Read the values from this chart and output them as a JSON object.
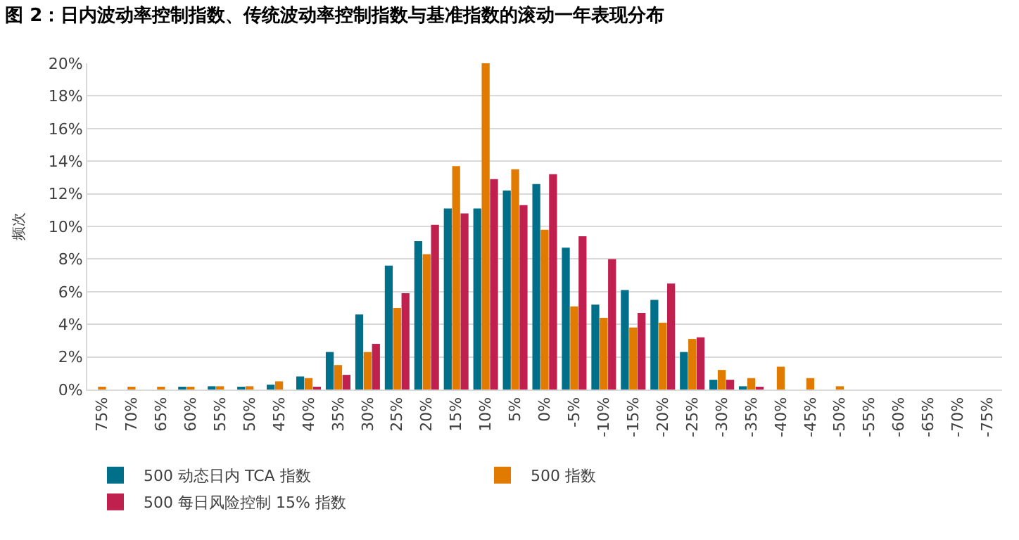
{
  "chart_data": {
    "type": "bar",
    "title": "图 2：日内波动率控制指数、传统波动率控制指数与基准指数的滚动一年表现分布",
    "ylabel": "频次",
    "categories": [
      "75%",
      "70%",
      "65%",
      "60%",
      "55%",
      "50%",
      "45%",
      "40%",
      "35%",
      "30%",
      "25%",
      "20%",
      "15%",
      "10%",
      "5%",
      "0%",
      "-5%",
      "-10%",
      "-15%",
      "-20%",
      "-25%",
      "-30%",
      "-35%",
      "-40%",
      "-45%",
      "-50%",
      "-55%",
      "-60%",
      "-65%",
      "-70%",
      "-75%"
    ],
    "series": [
      {
        "name": "500 动态日内 TCA 指数",
        "color": "#00708a",
        "values": [
          0,
          0,
          0,
          0.1,
          0.2,
          0.1,
          0.3,
          0.8,
          2.3,
          4.6,
          7.6,
          9.1,
          11.1,
          11.1,
          12.2,
          12.6,
          8.7,
          5.2,
          6.1,
          5.5,
          2.3,
          0.6,
          0.2,
          0,
          0,
          0,
          0,
          0,
          0,
          0,
          0
        ]
      },
      {
        "name": "500 指数",
        "color": "#e07b00",
        "values": [
          0.1,
          0.1,
          0.1,
          0.1,
          0.2,
          0.2,
          0.5,
          0.7,
          1.5,
          2.3,
          5.0,
          8.3,
          13.7,
          20,
          13.5,
          9.8,
          5.1,
          4.4,
          3.8,
          4.1,
          3.1,
          1.2,
          0.7,
          1.4,
          0.7,
          0.2,
          0,
          0,
          0,
          0,
          0
        ]
      },
      {
        "name": "500 每日风险控制 15% 指数",
        "color": "#c0204e",
        "values": [
          0,
          0,
          0,
          0,
          0,
          0,
          0,
          0.1,
          0.9,
          2.8,
          5.9,
          10.1,
          10.8,
          12.9,
          11.3,
          13.2,
          9.4,
          8.0,
          4.7,
          6.5,
          3.2,
          0.6,
          0.1,
          0,
          0,
          0,
          0,
          0,
          0,
          0,
          0
        ]
      }
    ],
    "ylim": [
      0,
      20
    ],
    "yticks": [
      {
        "value": 0,
        "label": "0%"
      },
      {
        "value": 2,
        "label": "2%"
      },
      {
        "value": 4,
        "label": "4%"
      },
      {
        "value": 6,
        "label": "6%"
      },
      {
        "value": 8,
        "label": "8%"
      },
      {
        "value": 10,
        "label": "10%"
      },
      {
        "value": 12,
        "label": "12%"
      },
      {
        "value": 14,
        "label": "14%"
      },
      {
        "value": 16,
        "label": "16%"
      },
      {
        "value": 18,
        "label": "18%"
      },
      {
        "value": 20,
        "label": "20%"
      }
    ],
    "grid": "y",
    "legend": "bottom"
  }
}
